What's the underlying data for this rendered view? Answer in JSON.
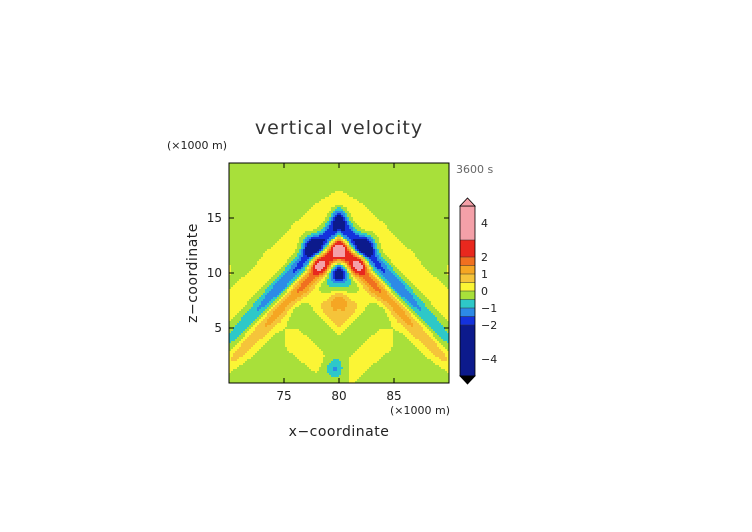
{
  "chart_data": {
    "type": "heatmap",
    "title": "vertical velocity",
    "xlabel": "x−coordinate",
    "ylabel": "z−coordinate",
    "x_unit": "(×1000 m)",
    "y_unit": "(×1000 m)",
    "time_label": "3600 s",
    "xlim": [
      70,
      90
    ],
    "ylim": [
      0,
      20
    ],
    "x_ticks": [
      75,
      80,
      85
    ],
    "y_ticks": [
      5,
      10,
      15
    ],
    "x_tick_labels": [
      "75",
      "80",
      "85"
    ],
    "y_tick_labels": [
      "5",
      "10",
      "15"
    ],
    "colorbar": {
      "range": [
        -5,
        5
      ],
      "tick_values": [
        4,
        2,
        1,
        0,
        -1,
        -2,
        -4
      ],
      "tick_labels": [
        "4",
        "2",
        "1",
        "0",
        "−1",
        "−2",
        "−4"
      ],
      "extend": "both"
    },
    "levels": [
      {
        "min": 3,
        "max": 5,
        "color": "#f4a0a8"
      },
      {
        "min": 2,
        "max": 3,
        "color": "#e8281e"
      },
      {
        "min": 1.5,
        "max": 2,
        "color": "#f07020"
      },
      {
        "min": 1,
        "max": 1.5,
        "color": "#f5a623"
      },
      {
        "min": 0.5,
        "max": 1,
        "color": "#f5c43a"
      },
      {
        "min": 0,
        "max": 0.5,
        "color": "#fbf535"
      },
      {
        "min": -0.5,
        "max": 0,
        "color": "#a8e03a"
      },
      {
        "min": -1,
        "max": -0.5,
        "color": "#2ec8c8"
      },
      {
        "min": -1.5,
        "max": -1,
        "color": "#2d8ae6"
      },
      {
        "min": -2,
        "max": -1.5,
        "color": "#1432dc"
      },
      {
        "min": -5,
        "max": -2,
        "color": "#0c1a8c"
      }
    ],
    "features": [
      {
        "x": 80,
        "z": 7.5,
        "w": 1.5
      },
      {
        "x": 80,
        "z": 10,
        "w": -2.5
      },
      {
        "x": 80,
        "z": 12,
        "w": 2.6
      },
      {
        "x": 80,
        "z": 15,
        "w": -1.3
      },
      {
        "x": 78.2,
        "z": 10.8,
        "w": 2.4
      },
      {
        "x": 81.8,
        "z": 10.8,
        "w": 2.4
      },
      {
        "x": 77.5,
        "z": 12.5,
        "w": -2.2
      },
      {
        "x": 82.5,
        "z": 12.5,
        "w": -2.2
      },
      {
        "x": 79.6,
        "z": 1.3,
        "w": -1.1
      }
    ]
  }
}
